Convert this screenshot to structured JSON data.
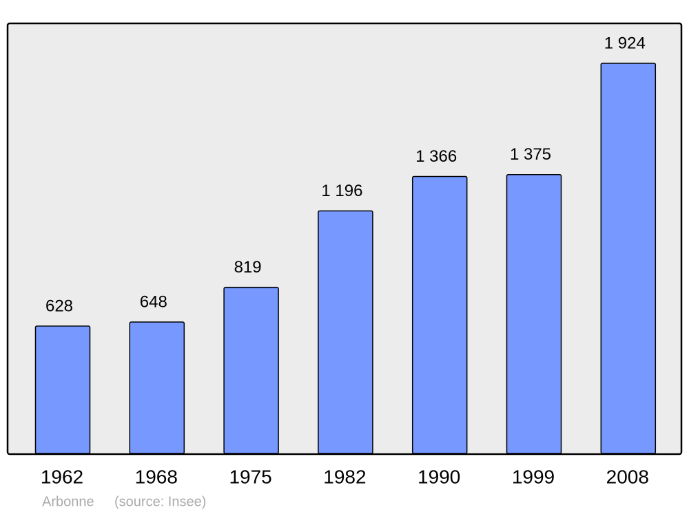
{
  "chart_data": {
    "type": "bar",
    "categories": [
      "1962",
      "1968",
      "1975",
      "1982",
      "1990",
      "1999",
      "2008"
    ],
    "values": [
      628,
      648,
      819,
      1196,
      1366,
      1375,
      1924
    ],
    "value_labels": [
      "628",
      "648",
      "819",
      "1 196",
      "1 366",
      "1 375",
      "1 924"
    ],
    "color": "#7799ff",
    "footer": {
      "place": "Arbonne",
      "source": "(source: Insee)"
    }
  }
}
